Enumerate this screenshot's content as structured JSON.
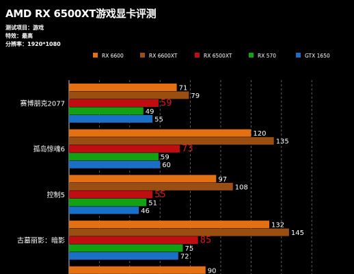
{
  "header": {
    "title": "AMD RX 6500XT游戏显卡评测",
    "meta": [
      "测试项目：游戏",
      "特效：最高",
      "分辨率：1920*1080"
    ]
  },
  "chart_data": {
    "type": "bar",
    "orientation": "horizontal",
    "title": "AMD RX 6500XT游戏显卡评测",
    "categories": [
      "赛博朋克2077",
      "孤岛惊魂6",
      "控制5",
      "古墓丽影：暗影",
      ""
    ],
    "series": [
      {
        "name": "RX 6600",
        "color": "#e37013",
        "values": [
          71,
          120,
          97,
          132,
          90
        ]
      },
      {
        "name": "RX 6600XT",
        "color": "#9b4e12",
        "values": [
          79,
          135,
          108,
          145,
          null
        ]
      },
      {
        "name": "RX 6500XT",
        "color": "#c00d12",
        "values": [
          59,
          73,
          55,
          85,
          null
        ]
      },
      {
        "name": "RX 570",
        "color": "#13a012",
        "values": [
          49,
          59,
          51,
          75,
          null
        ]
      },
      {
        "name": "GTX 1650",
        "color": "#1a6fc6",
        "values": [
          55,
          60,
          46,
          72,
          null
        ]
      }
    ],
    "highlight_series": "RX 6500XT",
    "highlight_label_color": "#e0181d",
    "xlim": [
      0,
      160
    ],
    "grid": "vertical dashed",
    "legend_position": "top-right"
  }
}
